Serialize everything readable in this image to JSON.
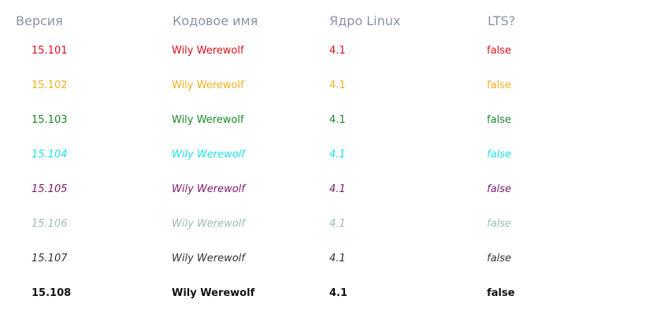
{
  "table": {
    "headers": [
      "Версия",
      "Кодовое имя",
      "Ядро Linux",
      "LTS?"
    ],
    "rows": [
      {
        "version": "15.101",
        "codename": "Wily Werewolf",
        "kernel": "4.1",
        "lts": "false"
      },
      {
        "version": "15.102",
        "codename": "Wily Werewolf",
        "kernel": "4.1",
        "lts": "false"
      },
      {
        "version": "15.103",
        "codename": "Wily Werewolf",
        "kernel": "4.1",
        "lts": "false"
      },
      {
        "version": "15.104",
        "codename": "Wily Werewolf",
        "kernel": "4.1",
        "lts": "false"
      },
      {
        "version": "15.105",
        "codename": "Wily Werewolf",
        "kernel": "4.1",
        "lts": "false"
      },
      {
        "version": "15.106",
        "codename": "Wily Werewolf",
        "kernel": "4.1",
        "lts": "false"
      },
      {
        "version": "15.107",
        "codename": "Wily Werewolf",
        "kernel": "4.1",
        "lts": "false"
      },
      {
        "version": "15.108",
        "codename": "Wily Werewolf",
        "kernel": "4.1",
        "lts": "false"
      }
    ]
  },
  "colors": {
    "header": "#8a94a6",
    "row_1": "#e0101a",
    "row_2": "#f0b020",
    "row_3": "#1a8a2a",
    "row_4": "#20e0e8",
    "row_5": "#7a1a6a",
    "row_6": "#9bbcb8",
    "row_7": "#333333",
    "row_8": "#111111"
  }
}
